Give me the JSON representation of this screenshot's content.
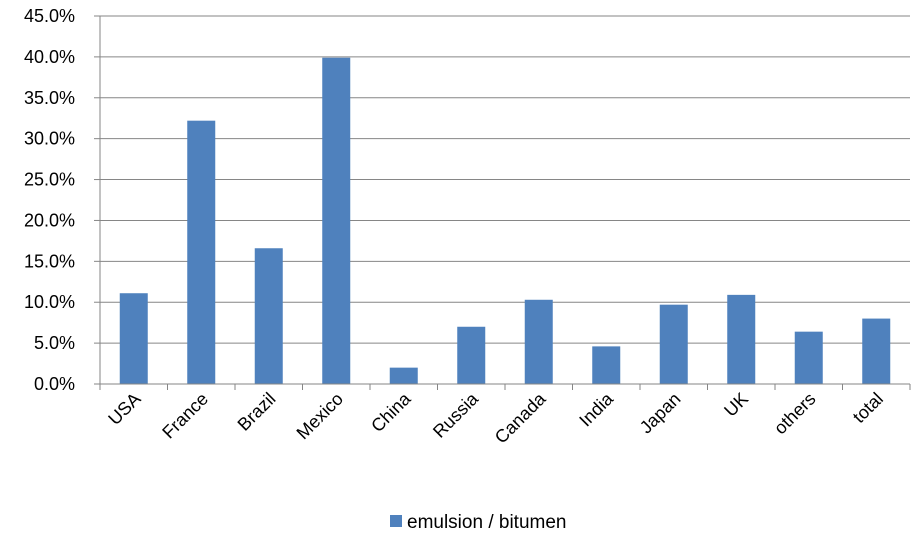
{
  "chart_data": {
    "type": "bar",
    "title": "",
    "xlabel": "",
    "ylabel": "",
    "categories": [
      "USA",
      "France",
      "Brazil",
      "Mexico",
      "China",
      "Russia",
      "Canada",
      "India",
      "Japan",
      "UK",
      "others",
      "total"
    ],
    "series": [
      {
        "name": "emulsion / bitumen",
        "color": "#4F81BD",
        "values": [
          11.1,
          32.2,
          16.6,
          39.9,
          2.0,
          7.0,
          10.3,
          4.6,
          9.7,
          10.9,
          6.4,
          8.0
        ]
      }
    ],
    "ylim": [
      0,
      45
    ],
    "yticks": [
      0,
      5,
      10,
      15,
      20,
      25,
      30,
      35,
      40,
      45
    ],
    "ytick_labels": [
      "0.0%",
      "5.0%",
      "10.0%",
      "15.0%",
      "20.0%",
      "25.0%",
      "30.0%",
      "35.0%",
      "40.0%",
      "45.0%"
    ],
    "grid": "horizontal",
    "legend": {
      "position": "bottom",
      "label": "emulsion / bitumen"
    },
    "colors": {
      "bar": "#4F81BD",
      "grid": "#868686",
      "axis": "#868686"
    }
  }
}
